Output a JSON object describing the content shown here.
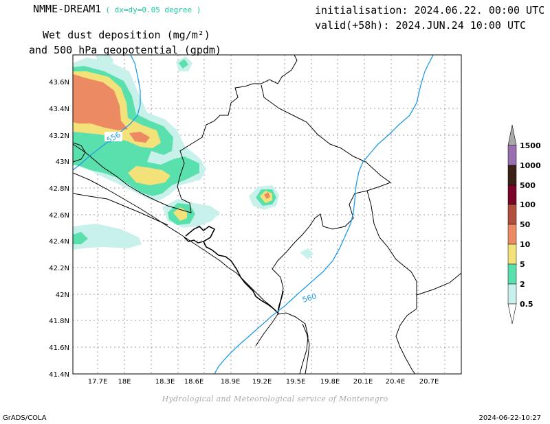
{
  "header": {
    "model": "NMME-DREAM1",
    "resolution": "( dx=dy=0.05 degree )",
    "field_line1": "Wet dust deposition (mg/m²)",
    "field_line2": "and 500 hPa geopotential (gpdm)",
    "init": "initialisation: 2024.06.22. 00:00 UTC",
    "valid": "valid(+58h): 2024.JUN.24 10:00 UTC"
  },
  "map": {
    "lon_labels": [
      "17.7E",
      "18E",
      "18.3E",
      "18.6E",
      "18.9E",
      "19.2E",
      "19.5E",
      "19.8E",
      "20.1E",
      "20.4E",
      "20.7E"
    ],
    "lat_labels": [
      "43.6N",
      "43.4N",
      "43.2N",
      "43N",
      "42.8N",
      "42.6N",
      "42.4N",
      "42.2N",
      "42N",
      "41.8N",
      "41.6N",
      "41.4N"
    ],
    "contours": [
      {
        "label": "556",
        "color": "#1e9be6"
      },
      {
        "label": "560",
        "color": "#1e9be6"
      }
    ]
  },
  "legend": {
    "levels": [
      "1500",
      "1000",
      "500",
      "100",
      "50",
      "10",
      "5",
      "2",
      "0.5"
    ],
    "colors": [
      "#9a6fb0",
      "#3b2116",
      "#7a0528",
      "#b34f3d",
      "#ec8a64",
      "#f3e27a",
      "#5ae0ad",
      "#c8f1ec"
    ]
  },
  "footer": {
    "credit": "Hydrological and Meteorological service of Montenegro",
    "left": "GrADS/COLA",
    "right": "2024-06-22-10:27"
  }
}
